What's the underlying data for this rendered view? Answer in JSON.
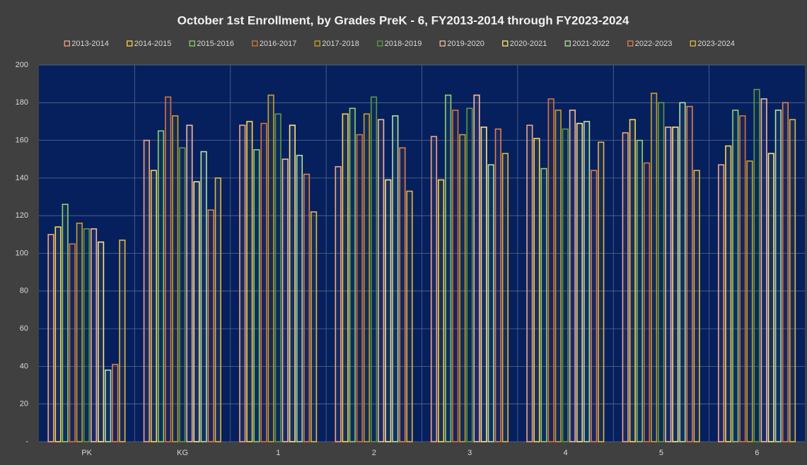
{
  "chart_data": {
    "type": "bar",
    "title": "October 1st Enrollment, by Grades PreK - 6, FY2013-2014 through FY2023-2024",
    "categories": [
      "PK",
      "KG",
      "1",
      "2",
      "3",
      "4",
      "5",
      "6"
    ],
    "series": [
      {
        "name": "2013-2014",
        "color": "#f4a582",
        "values": [
          110,
          160,
          168,
          146,
          162,
          168,
          164,
          147
        ]
      },
      {
        "name": "2014-2015",
        "color": "#ffd54a",
        "values": [
          114,
          144,
          170,
          174,
          139,
          161,
          171,
          157
        ]
      },
      {
        "name": "2015-2016",
        "color": "#8fd16a",
        "values": [
          126,
          165,
          155,
          177,
          184,
          145,
          160,
          176
        ]
      },
      {
        "name": "2016-2017",
        "color": "#d9733a",
        "values": [
          105,
          183,
          169,
          163,
          176,
          182,
          148,
          173
        ]
      },
      {
        "name": "2017-2018",
        "color": "#c9a227",
        "values": [
          116,
          173,
          184,
          174,
          163,
          176,
          185,
          149
        ]
      },
      {
        "name": "2018-2019",
        "color": "#5f9a3f",
        "values": [
          113,
          156,
          174,
          183,
          177,
          166,
          180,
          187
        ]
      },
      {
        "name": "2019-2020",
        "color": "#f7b9a0",
        "values": [
          113,
          168,
          150,
          171,
          184,
          176,
          167,
          182
        ]
      },
      {
        "name": "2020-2021",
        "color": "#ffe680",
        "values": [
          106,
          138,
          168,
          139,
          167,
          169,
          167,
          153
        ]
      },
      {
        "name": "2021-2022",
        "color": "#b5e0a0",
        "values": [
          38,
          154,
          152,
          173,
          147,
          170,
          180,
          176
        ]
      },
      {
        "name": "2022-2023",
        "color": "#e0804a",
        "values": [
          41,
          123,
          142,
          156,
          166,
          144,
          178,
          180
        ]
      },
      {
        "name": "2023-2024",
        "color": "#e0b840",
        "values": [
          107,
          140,
          122,
          133,
          153,
          159,
          144,
          171
        ]
      }
    ],
    "ylim": [
      0,
      200
    ],
    "yticks": [
      {
        "value": 0,
        "label": "-"
      },
      20,
      40,
      60,
      80,
      100,
      120,
      140,
      160,
      180,
      200
    ],
    "grid": true
  }
}
